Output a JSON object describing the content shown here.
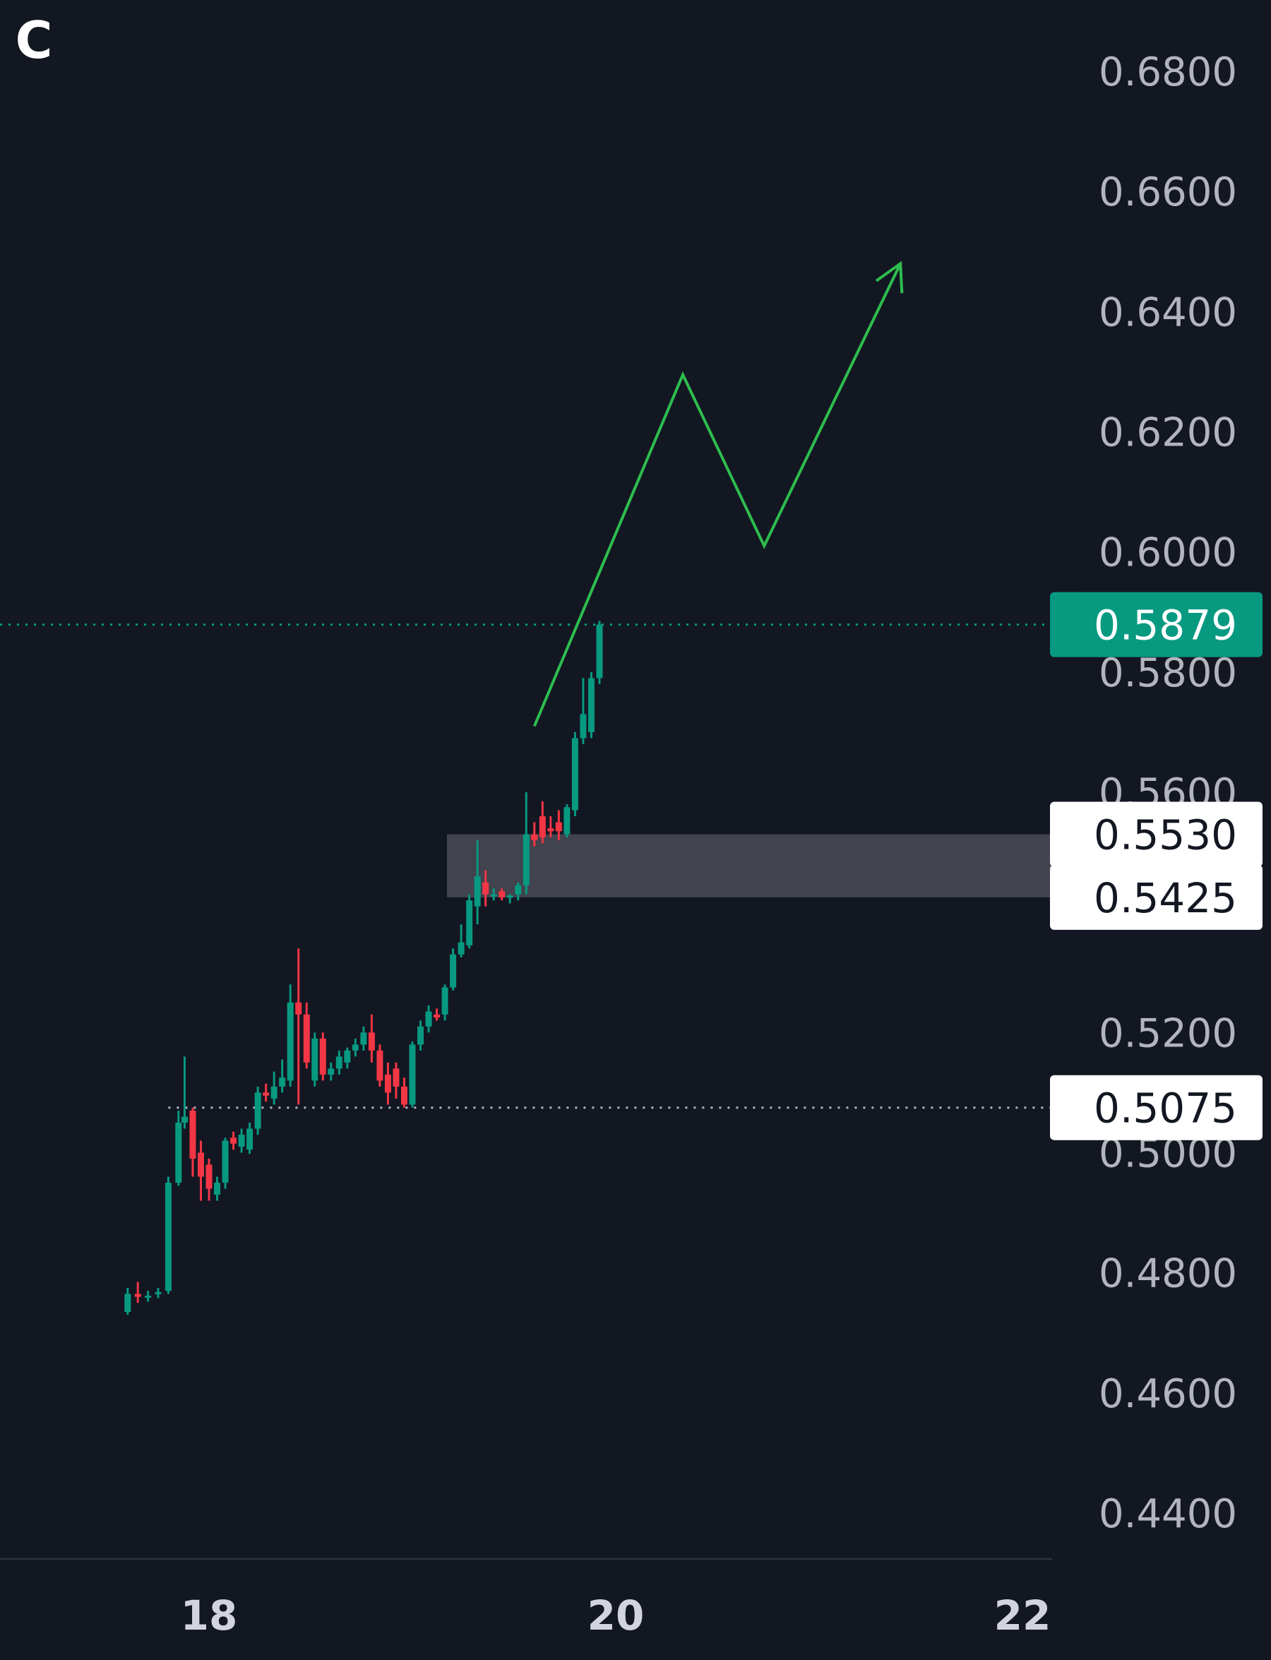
{
  "logo_text": "C",
  "colors": {
    "background": "#131722",
    "up": "#089981",
    "down": "#f23645",
    "projection": "#2ebd4e",
    "zone": "#434651",
    "tag_price": "#089981",
    "tick_text": "#b2b5be"
  },
  "chart_data": {
    "type": "candlestick",
    "title": "",
    "xlabel": "",
    "ylabel": "",
    "y_axis": {
      "ticks": [
        "0.6800",
        "0.6600",
        "0.6400",
        "0.6200",
        "0.6000",
        "0.5800",
        "0.5600",
        "0.5200",
        "0.5000",
        "0.4800",
        "0.4600",
        "0.4400"
      ],
      "position": "right"
    },
    "x_axis": {
      "ticks": [
        "18",
        "20",
        "22"
      ]
    },
    "ylim": [
      0.424,
      0.692
    ],
    "xlim": [
      17.0,
      22.15
    ],
    "grid": false,
    "current_price": {
      "label": "0.5879",
      "value": 0.5879
    },
    "zone": {
      "upper_label": "0.5530",
      "lower_label": "0.5425",
      "upper": 0.553,
      "lower": 0.5425,
      "x_start": 19.17
    },
    "support_level": {
      "label": "0.5075",
      "value": 0.5075,
      "x_start": 17.8
    },
    "projection": {
      "x": [
        19.6,
        20.33,
        20.73,
        21.4
      ],
      "y": [
        0.571,
        0.6295,
        0.601,
        0.648
      ]
    },
    "candles": [
      {
        "x": 17.6,
        "o": 0.4735,
        "h": 0.4775,
        "l": 0.473,
        "c": 0.4765
      },
      {
        "x": 17.65,
        "o": 0.4765,
        "h": 0.4785,
        "l": 0.475,
        "c": 0.476
      },
      {
        "x": 17.7,
        "o": 0.476,
        "h": 0.477,
        "l": 0.4752,
        "c": 0.4762
      },
      {
        "x": 17.75,
        "o": 0.4765,
        "h": 0.4775,
        "l": 0.4758,
        "c": 0.4768
      },
      {
        "x": 17.8,
        "o": 0.477,
        "h": 0.496,
        "l": 0.4765,
        "c": 0.495
      },
      {
        "x": 17.85,
        "o": 0.495,
        "h": 0.507,
        "l": 0.4945,
        "c": 0.505
      },
      {
        "x": 17.88,
        "o": 0.505,
        "h": 0.516,
        "l": 0.504,
        "c": 0.506
      },
      {
        "x": 17.92,
        "o": 0.507,
        "h": 0.5075,
        "l": 0.496,
        "c": 0.499
      },
      {
        "x": 17.96,
        "o": 0.5,
        "h": 0.502,
        "l": 0.492,
        "c": 0.496
      },
      {
        "x": 18.0,
        "o": 0.498,
        "h": 0.499,
        "l": 0.492,
        "c": 0.494
      },
      {
        "x": 18.04,
        "o": 0.493,
        "h": 0.496,
        "l": 0.492,
        "c": 0.495
      },
      {
        "x": 18.08,
        "o": 0.495,
        "h": 0.5025,
        "l": 0.494,
        "c": 0.502
      },
      {
        "x": 18.12,
        "o": 0.5025,
        "h": 0.5035,
        "l": 0.5005,
        "c": 0.5015
      },
      {
        "x": 18.16,
        "o": 0.501,
        "h": 0.504,
        "l": 0.5,
        "c": 0.503
      },
      {
        "x": 18.2,
        "o": 0.5005,
        "h": 0.505,
        "l": 0.4998,
        "c": 0.504
      },
      {
        "x": 18.24,
        "o": 0.504,
        "h": 0.511,
        "l": 0.503,
        "c": 0.51
      },
      {
        "x": 18.28,
        "o": 0.51,
        "h": 0.5115,
        "l": 0.5085,
        "c": 0.5095
      },
      {
        "x": 18.32,
        "o": 0.509,
        "h": 0.5135,
        "l": 0.508,
        "c": 0.511
      },
      {
        "x": 18.36,
        "o": 0.511,
        "h": 0.5155,
        "l": 0.51,
        "c": 0.5125
      },
      {
        "x": 18.4,
        "o": 0.512,
        "h": 0.528,
        "l": 0.511,
        "c": 0.525
      },
      {
        "x": 18.44,
        "o": 0.525,
        "h": 0.534,
        "l": 0.508,
        "c": 0.523
      },
      {
        "x": 18.48,
        "o": 0.523,
        "h": 0.525,
        "l": 0.514,
        "c": 0.515
      },
      {
        "x": 18.52,
        "o": 0.512,
        "h": 0.52,
        "l": 0.511,
        "c": 0.519
      },
      {
        "x": 18.56,
        "o": 0.519,
        "h": 0.52,
        "l": 0.512,
        "c": 0.513
      },
      {
        "x": 18.6,
        "o": 0.513,
        "h": 0.515,
        "l": 0.512,
        "c": 0.514
      },
      {
        "x": 18.64,
        "o": 0.514,
        "h": 0.517,
        "l": 0.513,
        "c": 0.516
      },
      {
        "x": 18.68,
        "o": 0.515,
        "h": 0.5175,
        "l": 0.514,
        "c": 0.517
      },
      {
        "x": 18.72,
        "o": 0.517,
        "h": 0.519,
        "l": 0.516,
        "c": 0.518
      },
      {
        "x": 18.76,
        "o": 0.518,
        "h": 0.521,
        "l": 0.517,
        "c": 0.52
      },
      {
        "x": 18.8,
        "o": 0.52,
        "h": 0.523,
        "l": 0.515,
        "c": 0.517
      },
      {
        "x": 18.84,
        "o": 0.517,
        "h": 0.518,
        "l": 0.511,
        "c": 0.512
      },
      {
        "x": 18.88,
        "o": 0.513,
        "h": 0.515,
        "l": 0.508,
        "c": 0.51
      },
      {
        "x": 18.92,
        "o": 0.514,
        "h": 0.515,
        "l": 0.509,
        "c": 0.511
      },
      {
        "x": 18.96,
        "o": 0.511,
        "h": 0.5125,
        "l": 0.5075,
        "c": 0.508
      },
      {
        "x": 19.0,
        "o": 0.508,
        "h": 0.5185,
        "l": 0.5075,
        "c": 0.518
      },
      {
        "x": 19.04,
        "o": 0.518,
        "h": 0.522,
        "l": 0.517,
        "c": 0.521
      },
      {
        "x": 19.08,
        "o": 0.521,
        "h": 0.5245,
        "l": 0.52,
        "c": 0.5235
      },
      {
        "x": 19.12,
        "o": 0.523,
        "h": 0.524,
        "l": 0.522,
        "c": 0.5225
      },
      {
        "x": 19.16,
        "o": 0.523,
        "h": 0.528,
        "l": 0.522,
        "c": 0.5275
      },
      {
        "x": 19.2,
        "o": 0.5275,
        "h": 0.534,
        "l": 0.527,
        "c": 0.533
      },
      {
        "x": 19.24,
        "o": 0.533,
        "h": 0.538,
        "l": 0.5325,
        "c": 0.535
      },
      {
        "x": 19.28,
        "o": 0.5345,
        "h": 0.543,
        "l": 0.534,
        "c": 0.542
      },
      {
        "x": 19.32,
        "o": 0.541,
        "h": 0.552,
        "l": 0.538,
        "c": 0.546
      },
      {
        "x": 19.36,
        "o": 0.545,
        "h": 0.547,
        "l": 0.541,
        "c": 0.543
      },
      {
        "x": 19.4,
        "o": 0.543,
        "h": 0.544,
        "l": 0.542,
        "c": 0.543
      },
      {
        "x": 19.44,
        "o": 0.5435,
        "h": 0.544,
        "l": 0.542,
        "c": 0.5425
      },
      {
        "x": 19.48,
        "o": 0.5425,
        "h": 0.543,
        "l": 0.5415,
        "c": 0.5428
      },
      {
        "x": 19.52,
        "o": 0.543,
        "h": 0.545,
        "l": 0.542,
        "c": 0.5445
      },
      {
        "x": 19.56,
        "o": 0.5445,
        "h": 0.56,
        "l": 0.543,
        "c": 0.553
      },
      {
        "x": 19.6,
        "o": 0.553,
        "h": 0.555,
        "l": 0.551,
        "c": 0.552
      },
      {
        "x": 19.64,
        "o": 0.556,
        "h": 0.5585,
        "l": 0.5515,
        "c": 0.5525
      },
      {
        "x": 19.68,
        "o": 0.554,
        "h": 0.556,
        "l": 0.5525,
        "c": 0.5535
      },
      {
        "x": 19.72,
        "o": 0.555,
        "h": 0.557,
        "l": 0.552,
        "c": 0.5535
      },
      {
        "x": 19.76,
        "o": 0.553,
        "h": 0.558,
        "l": 0.5525,
        "c": 0.5575
      },
      {
        "x": 19.8,
        "o": 0.557,
        "h": 0.57,
        "l": 0.556,
        "c": 0.569
      },
      {
        "x": 19.84,
        "o": 0.569,
        "h": 0.579,
        "l": 0.568,
        "c": 0.573
      },
      {
        "x": 19.88,
        "o": 0.57,
        "h": 0.58,
        "l": 0.569,
        "c": 0.579
      },
      {
        "x": 19.92,
        "o": 0.579,
        "h": 0.5885,
        "l": 0.578,
        "c": 0.5879
      }
    ]
  }
}
